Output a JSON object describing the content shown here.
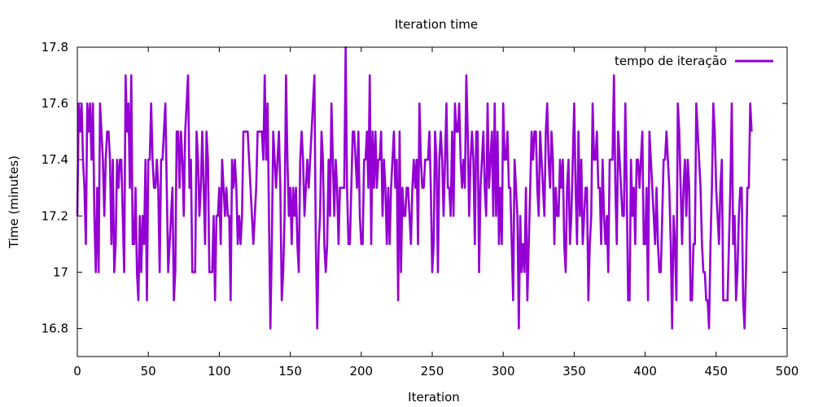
{
  "chart_data": {
    "type": "line",
    "title": "Iteration time",
    "xlabel": "Iteration",
    "ylabel": "Time (minutes)",
    "xlim": [
      0,
      500
    ],
    "ylim": [
      16.7,
      17.8
    ],
    "xticks": [
      0,
      50,
      100,
      150,
      200,
      250,
      300,
      350,
      400,
      450,
      500
    ],
    "xtick_labels": [
      "0",
      "50",
      "100",
      "150",
      "200",
      "250",
      "300",
      "350",
      "400",
      "450",
      "500"
    ],
    "yticks": [
      16.8,
      17,
      17.2,
      17.4,
      17.6,
      17.8
    ],
    "ytick_labels": [
      "16.8",
      "17",
      "17.2",
      "17.4",
      "17.6",
      "17.8"
    ],
    "grid": false,
    "legend_position": "top-right",
    "series": [
      {
        "name": "tempo de iteração",
        "color": "#9400d3",
        "x_start": 0,
        "x_step": 1,
        "values": [
          17.2,
          17.6,
          17.5,
          17.6,
          17.4,
          17.3,
          17.1,
          17.6,
          17.5,
          17.6,
          17.4,
          17.6,
          17.2,
          17.0,
          17.3,
          17.0,
          17.6,
          17.5,
          17.4,
          17.2,
          17.4,
          17.5,
          17.5,
          17.4,
          17.1,
          17.4,
          17.0,
          17.1,
          17.4,
          17.3,
          17.4,
          17.4,
          17.2,
          17.0,
          17.7,
          17.5,
          17.6,
          17.3,
          17.7,
          17.1,
          17.1,
          17.3,
          17.0,
          16.9,
          17.2,
          17.0,
          17.2,
          17.1,
          17.4,
          16.9,
          17.4,
          17.4,
          17.6,
          17.4,
          17.3,
          17.3,
          17.4,
          17.3,
          17.0,
          17.4,
          17.4,
          17.5,
          17.6,
          17.3,
          17.0,
          17.1,
          17.2,
          17.3,
          16.9,
          17.0,
          17.5,
          17.5,
          17.3,
          17.5,
          17.4,
          17.2,
          17.5,
          17.6,
          17.7,
          17.3,
          17.4,
          17.0,
          17.0,
          17.0,
          17.5,
          17.4,
          17.2,
          17.3,
          17.5,
          17.3,
          17.1,
          17.5,
          17.4,
          17.0,
          17.0,
          17.0,
          17.2,
          16.9,
          17.2,
          17.2,
          17.3,
          17.1,
          17.4,
          17.3,
          17.2,
          17.3,
          17.2,
          17.2,
          16.9,
          17.4,
          17.3,
          17.4,
          17.3,
          17.1,
          17.2,
          17.1,
          17.2,
          17.5,
          17.5,
          17.5,
          17.5,
          17.4,
          17.3,
          17.2,
          17.1,
          17.2,
          17.3,
          17.5,
          17.5,
          17.5,
          17.5,
          17.4,
          17.7,
          17.4,
          17.6,
          17.2,
          16.8,
          17.1,
          17.5,
          17.4,
          17.3,
          17.4,
          17.5,
          17.3,
          16.9,
          17.0,
          17.2,
          17.7,
          17.4,
          17.2,
          17.3,
          17.1,
          17.3,
          17.2,
          17.3,
          17.1,
          17.0,
          17.4,
          17.5,
          17.4,
          17.2,
          17.3,
          17.4,
          17.3,
          17.4,
          17.5,
          17.6,
          17.7,
          17.1,
          16.8,
          17.1,
          17.2,
          17.5,
          17.4,
          17.1,
          17.0,
          17.1,
          17.4,
          17.2,
          17.6,
          17.4,
          17.2,
          17.4,
          17.3,
          17.1,
          17.3,
          17.3,
          17.3,
          17.3,
          17.8,
          17.3,
          17.1,
          17.1,
          17.3,
          17.5,
          17.5,
          17.4,
          17.3,
          17.5,
          17.2,
          17.1,
          17.1,
          17.4,
          17.4,
          17.5,
          17.3,
          17.7,
          17.1,
          17.5,
          17.3,
          17.5,
          17.3,
          17.4,
          17.4,
          17.5,
          17.2,
          17.4,
          17.3,
          17.1,
          17.3,
          17.1,
          17.3,
          17.4,
          17.5,
          17.3,
          17.4,
          16.9,
          17.5,
          17.0,
          17.3,
          17.2,
          17.2,
          17.3,
          17.3,
          17.2,
          17.1,
          17.3,
          17.4,
          17.3,
          17.4,
          17.1,
          17.6,
          17.4,
          17.3,
          17.3,
          17.4,
          17.4,
          17.4,
          17.5,
          17.3,
          17.0,
          17.1,
          17.5,
          17.4,
          17.0,
          17.4,
          17.5,
          17.4,
          17.2,
          17.4,
          17.6,
          17.3,
          17.3,
          17.2,
          17.5,
          17.2,
          17.6,
          17.5,
          17.5,
          17.6,
          17.4,
          17.3,
          17.4,
          17.3,
          17.7,
          17.5,
          17.2,
          17.4,
          17.5,
          17.4,
          17.1,
          17.5,
          17.5,
          17.0,
          17.3,
          17.4,
          17.5,
          17.3,
          17.2,
          17.6,
          17.3,
          17.4,
          17.5,
          17.2,
          17.6,
          17.2,
          17.5,
          17.1,
          17.3,
          17.1,
          17.6,
          17.4,
          17.4,
          17.5,
          17.3,
          17.3,
          17.1,
          16.9,
          17.4,
          17.3,
          17.2,
          16.8,
          17.2,
          17.0,
          17.1,
          17.0,
          17.3,
          16.9,
          17.1,
          17.3,
          17.5,
          17.4,
          17.5,
          17.5,
          17.3,
          17.2,
          17.5,
          17.4,
          17.3,
          17.2,
          17.5,
          17.6,
          17.4,
          17.3,
          17.5,
          17.4,
          17.1,
          17.3,
          17.2,
          17.2,
          17.4,
          17.3,
          17.4,
          17.1,
          17.0,
          17.3,
          17.4,
          17.1,
          17.2,
          17.4,
          17.6,
          17.3,
          17.1,
          17.5,
          17.2,
          17.4,
          17.1,
          17.2,
          17.3,
          17.3,
          16.9,
          17.1,
          17.2,
          17.6,
          17.4,
          17.4,
          17.5,
          17.3,
          17.3,
          17.1,
          17.4,
          17.2,
          17.1,
          17.2,
          17.0,
          17.4,
          17.4,
          17.4,
          17.7,
          17.3,
          17.1,
          17.5,
          17.4,
          17.3,
          17.2,
          17.2,
          17.6,
          17.3,
          16.9,
          16.9,
          17.4,
          17.2,
          17.3,
          17.1,
          17.4,
          17.4,
          17.3,
          17.4,
          17.5,
          17.1,
          17.1,
          17.3,
          16.9,
          17.5,
          17.4,
          17.3,
          17.2,
          17.1,
          17.3,
          17.1,
          17.0,
          17.0,
          17.2,
          17.4,
          17.4,
          17.5,
          17.4,
          17.3,
          17.1,
          16.8,
          17.2,
          17.1,
          16.9,
          17.6,
          17.5,
          17.3,
          17.1,
          17.3,
          17.4,
          17.2,
          17.4,
          17.3,
          16.9,
          16.9,
          17.1,
          17.1,
          17.6,
          17.5,
          17.4,
          17.3,
          17.1,
          17.0,
          17.0,
          16.9,
          16.9,
          16.8,
          17.1,
          17.3,
          17.6,
          17.5,
          17.3,
          17.2,
          17.1,
          17.3,
          17.4,
          16.9,
          16.9,
          16.9,
          16.9,
          17.1,
          17.3,
          17.6,
          17.1,
          17.2,
          16.9,
          17.0,
          17.2,
          17.3,
          17.3,
          16.9,
          16.8,
          17.0,
          17.3,
          17.3,
          17.6,
          17.5
        ]
      }
    ]
  }
}
